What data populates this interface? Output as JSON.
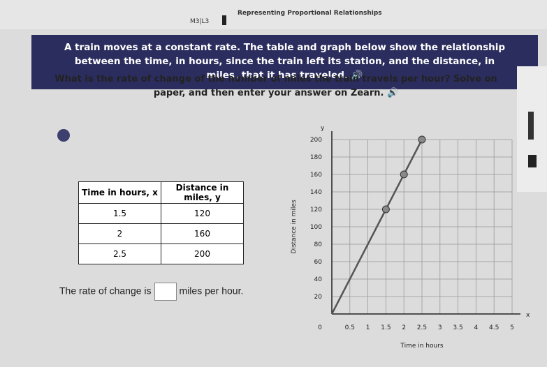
{
  "header": {
    "lesson": "M3|L3",
    "title": "Representing Proportional Relationships"
  },
  "banner": {
    "text": "A train moves at a constant rate. The table and graph below show the relationship between the time, in hours, since the train left its station, and the distance, in miles, that it has traveled."
  },
  "question": "What is the rate of change of the number of miles the train travels per hour? Solve on paper, and then enter your answer on Zearn.",
  "table": {
    "columns": [
      "Time in hours, x",
      "Distance in miles, y"
    ],
    "rows": [
      [
        "1.5",
        "120"
      ],
      [
        "2",
        "160"
      ],
      [
        "2.5",
        "200"
      ]
    ]
  },
  "answer": {
    "before": "The rate of change is",
    "after": "miles per hour."
  },
  "chart_data": {
    "type": "line",
    "x_label": "Time in hours",
    "y_label": "Distance in miles",
    "x_axis_name": "x",
    "y_axis_name": "y",
    "x": [
      0,
      1.5,
      2,
      2.5
    ],
    "values": [
      0,
      120,
      160,
      200
    ],
    "color": "#555",
    "xlim": [
      0,
      5
    ],
    "ylim": [
      0,
      200
    ],
    "xticks": [
      0,
      0.5,
      1,
      1.5,
      2,
      2.5,
      3,
      3.5,
      4,
      4.5,
      5
    ],
    "yticks": [
      20,
      40,
      60,
      80,
      100,
      120,
      140,
      160,
      180,
      200
    ],
    "grid": true
  }
}
